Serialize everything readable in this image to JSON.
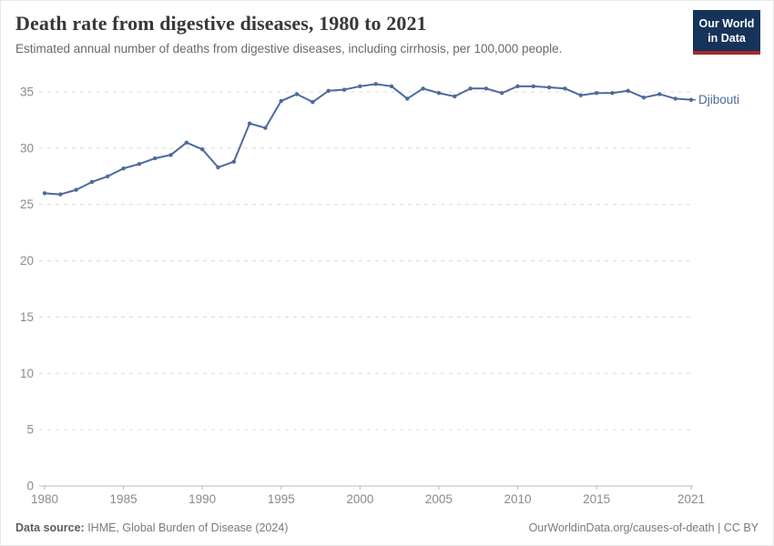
{
  "header": {
    "logo": {
      "line1": "Our World",
      "line2": "in Data"
    }
  },
  "chart_data": {
    "type": "line",
    "title": "Death rate from digestive diseases, 1980 to 2021",
    "subtitle": "Estimated annual number of deaths from digestive diseases, including cirrhosis, per 100,000 people.",
    "xlabel": "",
    "ylabel": "",
    "xlim": [
      1980,
      2021
    ],
    "ylim": [
      0,
      35
    ],
    "x_ticks": [
      1980,
      1985,
      1990,
      1995,
      2000,
      2005,
      2010,
      2015,
      2021
    ],
    "y_ticks": [
      0,
      5,
      10,
      15,
      20,
      25,
      30,
      35
    ],
    "grid": "horizontal-dashed",
    "legend_position": "end-of-line-label",
    "series": [
      {
        "name": "Djibouti",
        "color": "#4C6A9C",
        "x": [
          1980,
          1981,
          1982,
          1983,
          1984,
          1985,
          1986,
          1987,
          1988,
          1989,
          1990,
          1991,
          1992,
          1993,
          1994,
          1995,
          1996,
          1997,
          1998,
          1999,
          2000,
          2001,
          2002,
          2003,
          2004,
          2005,
          2006,
          2007,
          2008,
          2009,
          2010,
          2011,
          2012,
          2013,
          2014,
          2015,
          2016,
          2017,
          2018,
          2019,
          2020,
          2021
        ],
        "values": [
          26.0,
          25.9,
          26.3,
          27.0,
          27.5,
          28.2,
          28.6,
          29.1,
          29.4,
          30.5,
          29.9,
          28.3,
          28.8,
          32.2,
          31.8,
          34.2,
          34.8,
          34.1,
          35.1,
          35.2,
          35.5,
          35.7,
          35.5,
          34.4,
          35.3,
          34.9,
          34.6,
          35.3,
          35.3,
          34.9,
          35.5,
          35.5,
          35.4,
          35.3,
          34.7,
          34.9,
          34.9,
          35.1,
          34.5,
          34.8,
          34.4,
          34.3
        ]
      }
    ],
    "colors": {
      "line": "#4C6A9C",
      "axis_text": "#8a8a8a",
      "gridline": "#dcdcdc",
      "baseline": "#b8b8b8"
    }
  },
  "footer": {
    "datasource_label": "Data source:",
    "datasource_text": " IHME, Global Burden of Disease (2024)",
    "link": "OurWorldinData.org/causes-of-death | CC BY"
  }
}
